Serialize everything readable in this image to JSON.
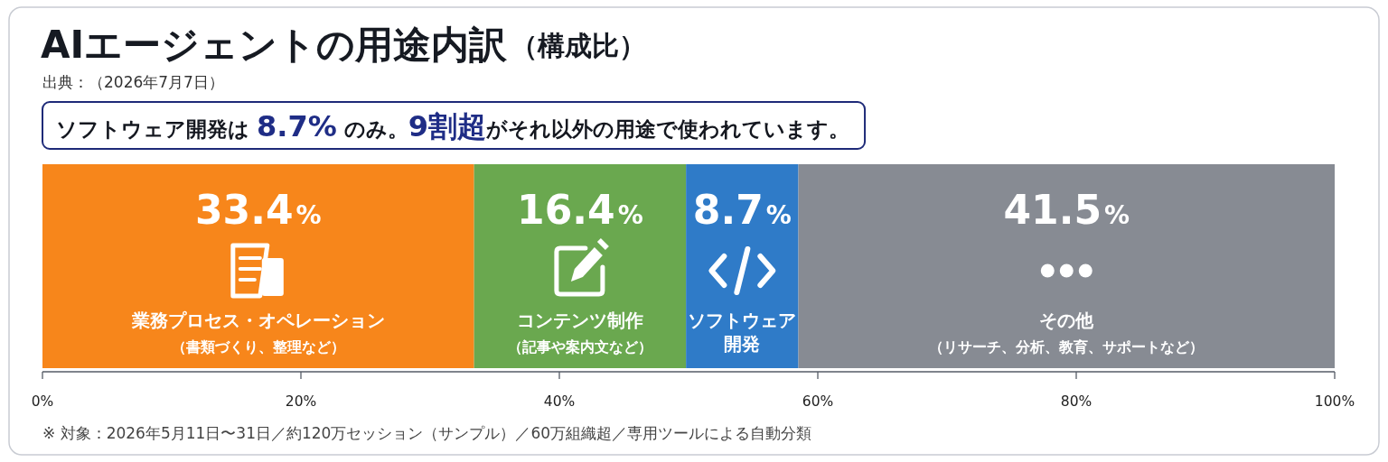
{
  "chart_data": {
    "type": "bar",
    "orientation": "horizontal",
    "stacked": true,
    "title": "AIエージェントの用途内訳",
    "subtitle": "（構成比）",
    "annotations": [
      "出典：（2026年7月7日）",
      "ソフトウェア開発は **8.7%** のみ。**9割超**がそれ以外の用途で使われています。",
      "※ 対象：2026年5月11日〜31日／約120万セッション（サンプル）／60万組織超／専用ツールによる自動分類"
    ],
    "categories": [
      null
    ],
    "series": [
      {
        "name": "**業務プロセス・オペレーション**（書類づくり、整理など）",
        "color": "#f7861b",
        "values": [
          33.4
        ],
        "value_labels": [
          "33.4%"
        ]
      },
      {
        "name": "**コンテンツ制作**（記事や案内文など）",
        "color": "#6aa84f",
        "values": [
          16.4
        ],
        "value_labels": [
          "16.4%"
        ]
      },
      {
        "name": "ソフトウェア開発",
        "color": "#2f7bc8",
        "values": [
          8.7
        ],
        "value_labels": [
          "8.7%"
        ]
      },
      {
        "name": "**その他**（リサーチ、分析、教育、サポートなど）",
        "color": "#878b93",
        "values": [
          41.5
        ],
        "value_labels": [
          "41.5%"
        ]
      }
    ],
    "xlim": [
      0,
      100
    ],
    "xticks": [
      {
        "value": 0,
        "label": "0%"
      },
      {
        "value": 20,
        "label": "20%"
      },
      {
        "value": 40,
        "label": "40%"
      },
      {
        "value": 60,
        "label": "60%"
      },
      {
        "value": 80,
        "label": "80%"
      },
      {
        "value": 100,
        "label": "100%"
      }
    ]
  }
}
